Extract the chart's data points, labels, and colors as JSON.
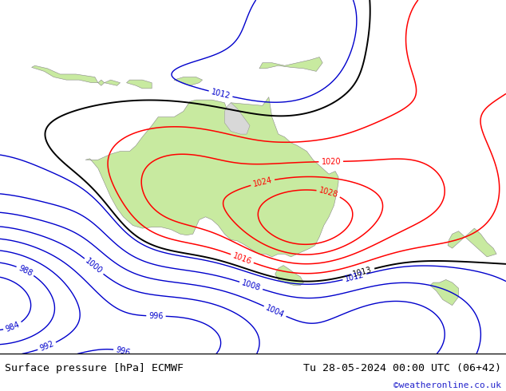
{
  "title_left": "Surface pressure [hPa] ECMWF",
  "title_right": "Tu 28-05-2024 00:00 UTC (06+42)",
  "copyright": "©weatheronline.co.uk",
  "bg_color": "#d8d8d8",
  "land_color": "#c8eaa0",
  "footer_bg": "#ffffff",
  "black_levels": [
    1013
  ],
  "red_levels": [
    1016,
    1020,
    1024,
    1028
  ],
  "blue_levels": [
    984,
    988,
    992,
    996,
    1000,
    1004,
    1008,
    1012
  ],
  "xlim": [
    100,
    180
  ],
  "ylim": [
    -56,
    6
  ],
  "map_bottom": 0.095,
  "map_height": 0.905
}
